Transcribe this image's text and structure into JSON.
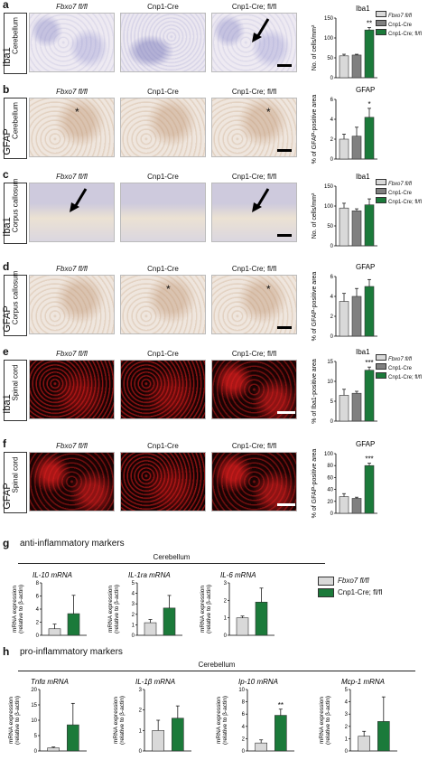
{
  "colors": {
    "gray_light": "#d9d9d9",
    "gray_dark": "#808080",
    "green": "#1b7a3a",
    "black": "#111111"
  },
  "columns": [
    "Fbxo7 fl/fl",
    "Cnp1-Cre",
    "Cnp1-Cre; fl/fl"
  ],
  "legend3": [
    "Fbxo7 fl/fl",
    "Cnp1-Cre",
    "Cnp1-Cre; fl/fl"
  ],
  "legend2": [
    "Fbxo7 fl/fl",
    "Cnp1-Cre; fl/fl"
  ],
  "rows": [
    {
      "letter": "a",
      "stain": "Iba1",
      "region": "Cerebellum",
      "imgs": [
        "ihc",
        "ihc2",
        "ihc"
      ],
      "stars": [],
      "arrows": [
        2
      ]
    },
    {
      "letter": "b",
      "stain": "GFAP",
      "region": "Cerebellum",
      "imgs": [
        "brown",
        "brown",
        "brown"
      ],
      "stars": [
        0,
        2
      ],
      "arrows": []
    },
    {
      "letter": "c",
      "stain": "Iba1",
      "region": "Corpus callosum",
      "imgs": [
        "wm",
        "wm",
        "wm"
      ],
      "stars": [],
      "arrows": [
        0,
        2
      ]
    },
    {
      "letter": "d",
      "stain": "GFAP",
      "region": "Corpus callosum",
      "imgs": [
        "brown",
        "brown",
        "brown"
      ],
      "stars": [
        1,
        2
      ],
      "arrows": []
    },
    {
      "letter": "e",
      "stain": "Iba1",
      "region": "Spinal cord",
      "imgs": [
        "fluor",
        "fluor",
        "fluor2"
      ],
      "stars": [],
      "arrows": []
    },
    {
      "letter": "f",
      "stain": "GFAP",
      "region": "Spinal cord",
      "imgs": [
        "fluor2",
        "fluor",
        "fluor2"
      ],
      "stars": [],
      "arrows": []
    }
  ],
  "star_symbol": "*",
  "chart_data": [
    {
      "id": "a",
      "type": "bar",
      "title": "Iba1",
      "ylabel": "No. of cells/mm²",
      "categories": [
        "Fbxo7 fl/fl",
        "Cnp1-Cre",
        "Cnp1-Cre; fl/fl"
      ],
      "values": [
        55,
        57,
        120
      ],
      "errors": [
        4,
        2,
        6
      ],
      "ylim": [
        0,
        150
      ],
      "ticks": [
        "0",
        "50",
        "100",
        "150"
      ],
      "sig": [
        "",
        "",
        "**"
      ],
      "legend": true
    },
    {
      "id": "b",
      "type": "bar",
      "title": "GFAP",
      "ylabel": "% of GFAP-positive area",
      "categories": [
        "Fbxo7 fl/fl",
        "Cnp1-Cre",
        "Cnp1-Cre; fl/fl"
      ],
      "values": [
        2.0,
        2.3,
        4.2
      ],
      "errors": [
        0.5,
        0.9,
        0.9
      ],
      "ylim": [
        0,
        6
      ],
      "ticks": [
        "0",
        "2",
        "4",
        "6"
      ],
      "sig": [
        "",
        "",
        "*"
      ],
      "legend": false
    },
    {
      "id": "c",
      "type": "bar",
      "title": "Iba1",
      "ylabel": "No. of cells/mm²",
      "categories": [
        "Fbxo7 fl/fl",
        "Cnp1-Cre",
        "Cnp1-Cre; fl/fl"
      ],
      "values": [
        95,
        88,
        103
      ],
      "errors": [
        12,
        5,
        15
      ],
      "ylim": [
        0,
        150
      ],
      "ticks": [
        "0",
        "50",
        "100",
        "150"
      ],
      "sig": [
        "",
        "",
        ""
      ],
      "legend": true
    },
    {
      "id": "d",
      "type": "bar",
      "title": "GFAP",
      "ylabel": "% of GFAP-positive area",
      "categories": [
        "Fbxo7 fl/fl",
        "Cnp1-Cre",
        "Cnp1-Cre; fl/fl"
      ],
      "values": [
        3.5,
        4.0,
        5.0
      ],
      "errors": [
        0.8,
        0.8,
        0.7
      ],
      "ylim": [
        0,
        6
      ],
      "ticks": [
        "0",
        "2",
        "4",
        "6"
      ],
      "sig": [
        "",
        "",
        ""
      ],
      "legend": false
    },
    {
      "id": "e",
      "type": "bar",
      "title": "Iba1",
      "ylabel": "% of Iba1-positive area",
      "categories": [
        "Fbxo7 fl/fl",
        "Cnp1-Cre",
        "Cnp1-Cre; fl/fl"
      ],
      "values": [
        6.5,
        7.0,
        12.8
      ],
      "errors": [
        1.5,
        0.5,
        0.8
      ],
      "ylim": [
        0,
        15
      ],
      "ticks": [
        "0",
        "5",
        "10",
        "15"
      ],
      "sig": [
        "",
        "",
        "***"
      ],
      "legend": true
    },
    {
      "id": "f",
      "type": "bar",
      "title": "GFAP",
      "ylabel": "% of GFAP-positive area",
      "categories": [
        "Fbxo7 fl/fl",
        "Cnp1-Cre",
        "Cnp1-Cre; fl/fl"
      ],
      "values": [
        28,
        25,
        80
      ],
      "errors": [
        5,
        2,
        4
      ],
      "ylim": [
        0,
        100
      ],
      "ticks": [
        "0",
        "20",
        "40",
        "60",
        "80",
        "100"
      ],
      "sig": [
        "",
        "",
        "***"
      ],
      "legend": false
    },
    {
      "id": "g1",
      "type": "bar",
      "title": "IL-10 mRNA",
      "ylabel": "mRNA expression (relative to β-actin)",
      "categories": [
        "Fbxo7 fl/fl",
        "Cnp1-Cre; fl/fl"
      ],
      "values": [
        1.0,
        3.3
      ],
      "errors": [
        0.7,
        2.8
      ],
      "ylim": [
        0,
        8
      ],
      "ticks": [
        "0",
        "2",
        "4",
        "6",
        "8"
      ],
      "sig": [
        "",
        ""
      ]
    },
    {
      "id": "g2",
      "type": "bar",
      "title": "IL-1ra mRNA",
      "ylabel": "mRNA expression (relative to β-actin)",
      "categories": [
        "Fbxo7 fl/fl",
        "Cnp1-Cre; fl/fl"
      ],
      "values": [
        1.2,
        2.6
      ],
      "errors": [
        0.3,
        1.2
      ],
      "ylim": [
        0,
        5
      ],
      "ticks": [
        "0",
        "1",
        "2",
        "3",
        "4",
        "5"
      ],
      "sig": [
        "",
        ""
      ]
    },
    {
      "id": "g3",
      "type": "bar",
      "title": "IL-6 mRNA",
      "ylabel": "mRNA expression (relative to β-actin)",
      "categories": [
        "Fbxo7 fl/fl",
        "Cnp1-Cre; fl/fl"
      ],
      "values": [
        1.0,
        1.9
      ],
      "errors": [
        0.1,
        0.8
      ],
      "ylim": [
        0,
        3
      ],
      "ticks": [
        "0",
        "1",
        "2",
        "3"
      ],
      "sig": [
        "",
        ""
      ]
    },
    {
      "id": "h1",
      "type": "bar",
      "title": "Tnfα mRNA",
      "ylabel": "mRNA expression (relative to β-actin)",
      "categories": [
        "Fbxo7 fl/fl",
        "Cnp1-Cre; fl/fl"
      ],
      "values": [
        1.0,
        8.5
      ],
      "errors": [
        0.3,
        7.0
      ],
      "ylim": [
        0,
        20
      ],
      "ticks": [
        "0",
        "5",
        "10",
        "15",
        "20"
      ],
      "sig": [
        "",
        ""
      ]
    },
    {
      "id": "h2",
      "type": "bar",
      "title": "IL-1β mRNA",
      "ylabel": "mRNA expression (relative to β-actin)",
      "categories": [
        "Fbxo7 fl/fl",
        "Cnp1-Cre; fl/fl"
      ],
      "values": [
        1.0,
        1.6
      ],
      "errors": [
        0.5,
        0.6
      ],
      "ylim": [
        0,
        3
      ],
      "ticks": [
        "0",
        "1",
        "2",
        "3"
      ],
      "sig": [
        "",
        ""
      ]
    },
    {
      "id": "h3",
      "type": "bar",
      "title": "Ip-10 mRNA",
      "ylabel": "mRNA expression (relative to β-actin)",
      "categories": [
        "Fbxo7 fl/fl",
        "Cnp1-Cre; fl/fl"
      ],
      "values": [
        1.3,
        5.8
      ],
      "errors": [
        0.5,
        1.0
      ],
      "ylim": [
        0,
        10
      ],
      "ticks": [
        "0",
        "2",
        "4",
        "6",
        "8",
        "10"
      ],
      "sig": [
        "",
        "**"
      ]
    },
    {
      "id": "h4",
      "type": "bar",
      "title": "Mcp-1 mRNA",
      "ylabel": "mRNA expression (relative to β-actin)",
      "categories": [
        "Fbxo7 fl/fl",
        "Cnp1-Cre; fl/fl"
      ],
      "values": [
        1.2,
        2.4
      ],
      "errors": [
        0.4,
        2.0
      ],
      "ylim": [
        0,
        5
      ],
      "ticks": [
        "0",
        "1",
        "2",
        "3",
        "4",
        "5"
      ],
      "sig": [
        "",
        ""
      ]
    }
  ],
  "g": {
    "letter": "g",
    "title": "anti-inflammatory markers",
    "region": "Cerebellum"
  },
  "h": {
    "letter": "h",
    "title": "pro-inflammatory markers",
    "region": "Cerebellum"
  }
}
